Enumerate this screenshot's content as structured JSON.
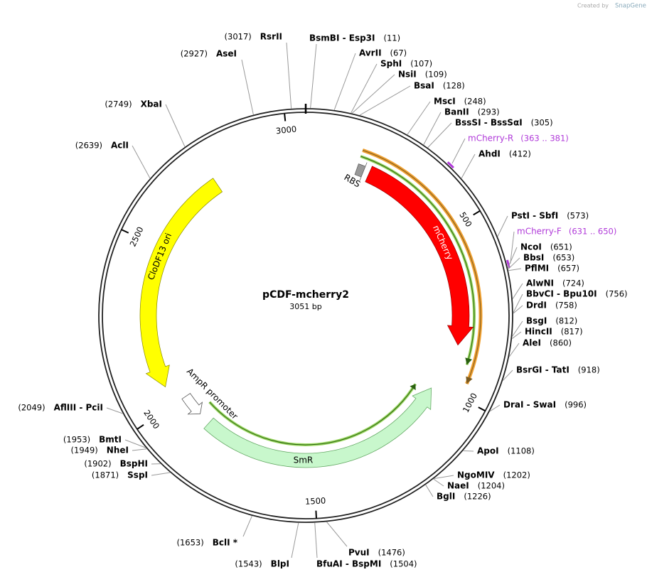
{
  "credit": "Created by",
  "brand": "SnapGene",
  "plasmid": {
    "name": "pCDF-mcherry2",
    "length": "3051 bp"
  },
  "ticks": [
    "3000",
    "500",
    "1000",
    "1500",
    "2000",
    "2500"
  ],
  "features": [
    {
      "label": "mCherry"
    },
    {
      "label": "RBS"
    },
    {
      "label": "CloDF13 ori"
    },
    {
      "label": "AmpR promoter"
    },
    {
      "label": "SmR"
    }
  ],
  "primers": [
    {
      "name": "mCherry-R",
      "position": "(363 .. 381)"
    },
    {
      "name": "mCherry-F",
      "position": "(631 .. 650)"
    }
  ],
  "enzymes": [
    {
      "name": "RsrII",
      "position": "(3017)"
    },
    {
      "name": "BsmBI - Esp3I",
      "position": "(11)"
    },
    {
      "name": "AvrII",
      "position": "(67)"
    },
    {
      "name": "SphI",
      "position": "(107)"
    },
    {
      "name": "NsiI",
      "position": "(109)"
    },
    {
      "name": "BsaI",
      "position": "(128)"
    },
    {
      "name": "MscI",
      "position": "(248)"
    },
    {
      "name": "BanII",
      "position": "(293)"
    },
    {
      "name": "BssSI - BssSαI",
      "position": "(305)"
    },
    {
      "name": "AhdI",
      "position": "(412)"
    },
    {
      "name": "PstI - SbfI",
      "position": "(573)"
    },
    {
      "name": "NcoI",
      "position": "(651)"
    },
    {
      "name": "BbsI",
      "position": "(653)"
    },
    {
      "name": "PflMI",
      "position": "(657)"
    },
    {
      "name": "AlwNI",
      "position": "(724)"
    },
    {
      "name": "BbvCI - Bpu10I",
      "position": "(756)"
    },
    {
      "name": "DrdI",
      "position": "(758)"
    },
    {
      "name": "BsgI",
      "position": "(812)"
    },
    {
      "name": "HincII",
      "position": "(817)"
    },
    {
      "name": "AleI",
      "position": "(860)"
    },
    {
      "name": "BsrGI - TatI",
      "position": "(918)"
    },
    {
      "name": "DraI - SwaI",
      "position": "(996)"
    },
    {
      "name": "ApoI",
      "position": "(1108)"
    },
    {
      "name": "NgoMIV",
      "position": "(1202)"
    },
    {
      "name": "NaeI",
      "position": "(1204)"
    },
    {
      "name": "BglI",
      "position": "(1226)"
    },
    {
      "name": "PvuI",
      "position": "(1476)"
    },
    {
      "name": "BfuAI - BspMI",
      "position": "(1504)"
    },
    {
      "name": "BlpI",
      "position": "(1543)"
    },
    {
      "name": "BclI *",
      "position": "(1653)"
    },
    {
      "name": "SspI",
      "position": "(1871)"
    },
    {
      "name": "BspHI",
      "position": "(1902)"
    },
    {
      "name": "NheI",
      "position": "(1949)"
    },
    {
      "name": "BmtI",
      "position": "(1953)"
    },
    {
      "name": "AflIII - PciI",
      "position": "(2049)"
    },
    {
      "name": "AclI",
      "position": "(2639)"
    },
    {
      "name": "XbaI",
      "position": "(2749)"
    },
    {
      "name": "AseI",
      "position": "(2927)"
    }
  ]
}
